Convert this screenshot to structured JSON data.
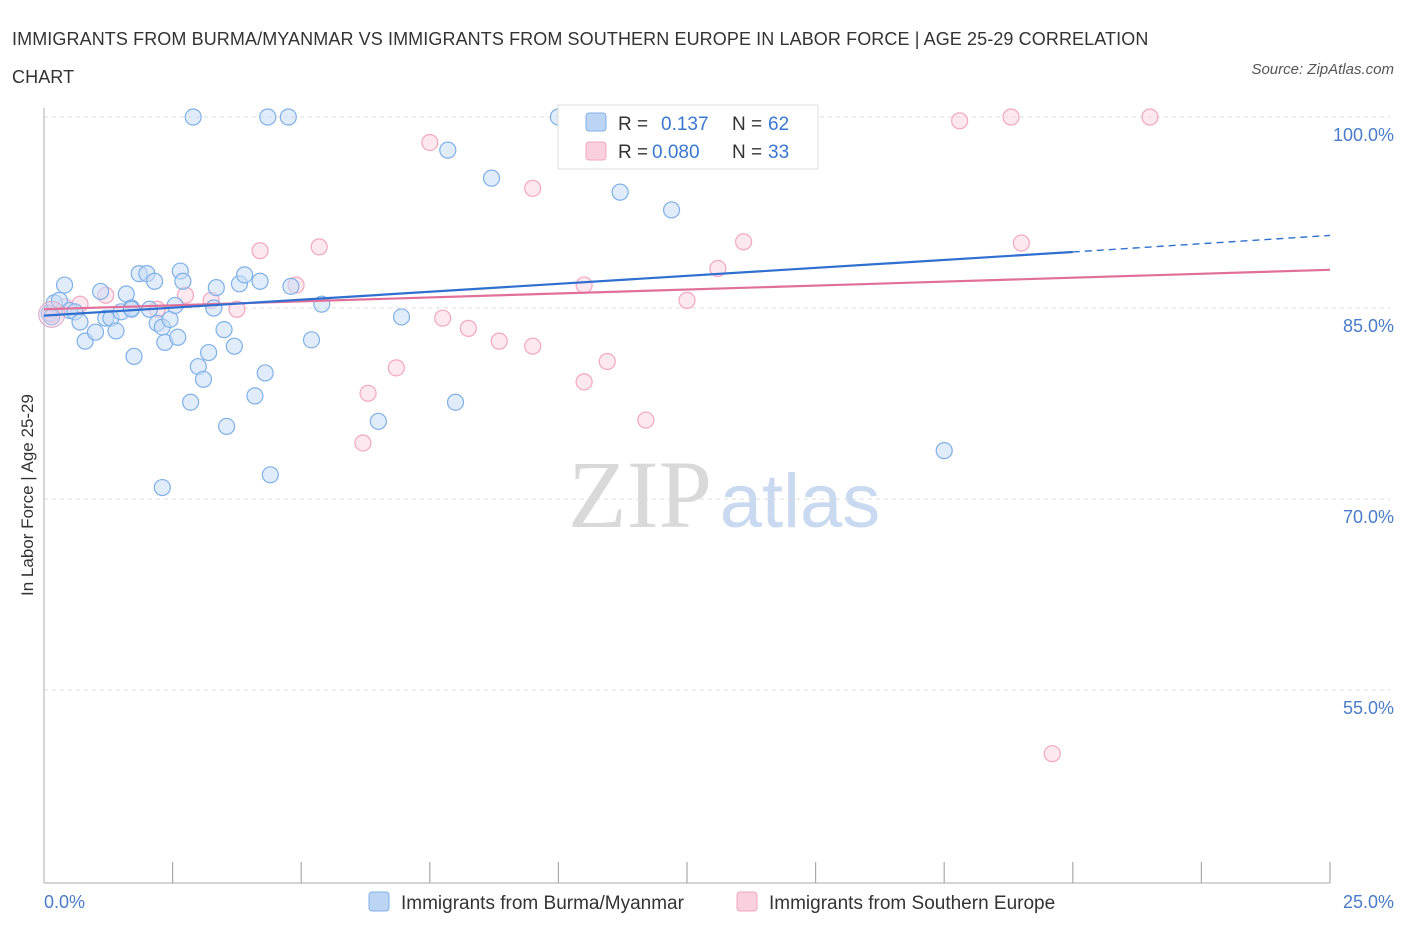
{
  "title": "IMMIGRANTS FROM BURMA/MYANMAR VS IMMIGRANTS FROM SOUTHERN EUROPE IN LABOR FORCE | AGE 25-29 CORRELATION CHART",
  "source": "Source: ZipAtlas.com",
  "watermark": {
    "zip": "ZIP",
    "atlas": "atlas"
  },
  "chart_data": {
    "type": "scatter",
    "title": "IMMIGRANTS FROM BURMA/MYANMAR VS IMMIGRANTS FROM SOUTHERN EUROPE IN LABOR FORCE | AGE 25-29 CORRELATION CHART",
    "xlabel": "",
    "ylabel": "In Labor Force | Age 25-29",
    "xlim": [
      0,
      25
    ],
    "ylim": [
      40,
      101
    ],
    "x_tick_labels": {
      "left": "0.0%",
      "right": "25.0%"
    },
    "y_ticks": [
      {
        "value": 100,
        "label": "100.0%"
      },
      {
        "value": 85,
        "label": "85.0%"
      },
      {
        "value": 70,
        "label": "70.0%"
      },
      {
        "value": 55,
        "label": "55.0%"
      }
    ],
    "legend": {
      "placement": "top-center",
      "rows": [
        {
          "r_label": "R =",
          "r_value": "0.137",
          "n_label": "N =",
          "n_value": "62"
        },
        {
          "r_label": "R =",
          "r_value": "0.080",
          "n_label": "N =",
          "n_value": "33"
        }
      ]
    },
    "series": [
      {
        "name": "Immigrants from Burma/Myanmar",
        "color": "#7fb0e8",
        "line_color": "#2f6fcf",
        "trend": {
          "x0": 0,
          "y0": 84.4,
          "x1": 20,
          "y1": 89.4,
          "dashed_to_x": 25,
          "dashed_y": 90.7
        },
        "points": [
          [
            0.1,
            84.6
          ],
          [
            0.2,
            85.4
          ],
          [
            0.3,
            85.6
          ],
          [
            0.4,
            86.8
          ],
          [
            0.5,
            84.8
          ],
          [
            0.6,
            84.7
          ],
          [
            0.7,
            83.9
          ],
          [
            0.8,
            82.4
          ],
          [
            1.0,
            83.1
          ],
          [
            1.1,
            86.3
          ],
          [
            1.2,
            84.2
          ],
          [
            1.3,
            84.2
          ],
          [
            1.4,
            83.2
          ],
          [
            1.5,
            84.7
          ],
          [
            1.6,
            86.1
          ],
          [
            1.7,
            85.0
          ],
          [
            1.75,
            81.2
          ],
          [
            1.85,
            87.7
          ],
          [
            2.0,
            87.7
          ],
          [
            2.05,
            84.9
          ],
          [
            2.15,
            87.1
          ],
          [
            2.2,
            83.8
          ],
          [
            2.3,
            83.5
          ],
          [
            2.35,
            82.3
          ],
          [
            2.45,
            84.1
          ],
          [
            2.55,
            85.2
          ],
          [
            2.6,
            82.7
          ],
          [
            2.65,
            87.9
          ],
          [
            2.7,
            87.1
          ],
          [
            2.85,
            77.6
          ],
          [
            2.9,
            100.0
          ],
          [
            3.0,
            80.4
          ],
          [
            3.1,
            79.4
          ],
          [
            3.2,
            81.5
          ],
          [
            3.3,
            85.0
          ],
          [
            3.35,
            86.6
          ],
          [
            3.5,
            83.3
          ],
          [
            3.55,
            75.7
          ],
          [
            3.7,
            82.0
          ],
          [
            3.8,
            86.9
          ],
          [
            3.9,
            87.6
          ],
          [
            4.1,
            78.1
          ],
          [
            4.2,
            87.1
          ],
          [
            4.3,
            79.9
          ],
          [
            4.4,
            71.9
          ],
          [
            4.35,
            100.0
          ],
          [
            4.75,
            100.0
          ],
          [
            4.8,
            86.7
          ],
          [
            5.2,
            82.5
          ],
          [
            5.4,
            85.3
          ],
          [
            6.5,
            76.1
          ],
          [
            6.95,
            84.3
          ],
          [
            7.85,
            97.4
          ],
          [
            8.0,
            77.6
          ],
          [
            8.7,
            95.2
          ],
          [
            10.0,
            100.0
          ],
          [
            11.2,
            94.1
          ],
          [
            12.2,
            92.7
          ],
          [
            17.5,
            73.8
          ],
          [
            2.3,
            70.9
          ],
          [
            1.7,
            84.9
          ],
          [
            0.15,
            84.3
          ]
        ]
      },
      {
        "name": "Immigrants from Southern Europe",
        "color": "#f3a6c0",
        "line_color": "#e0709a",
        "trend": {
          "x0": 0,
          "y0": 84.9,
          "x1": 25,
          "y1": 88.0
        },
        "points": [
          [
            0.15,
            84.5
          ],
          [
            0.7,
            85.3
          ],
          [
            1.2,
            86.0
          ],
          [
            2.2,
            84.9
          ],
          [
            2.75,
            86.0
          ],
          [
            3.25,
            85.6
          ],
          [
            3.75,
            84.9
          ],
          [
            4.2,
            89.5
          ],
          [
            4.9,
            86.8
          ],
          [
            5.35,
            89.8
          ],
          [
            6.2,
            74.4
          ],
          [
            6.3,
            78.3
          ],
          [
            6.85,
            80.3
          ],
          [
            7.5,
            98.0
          ],
          [
            7.75,
            84.2
          ],
          [
            8.25,
            83.4
          ],
          [
            8.85,
            82.4
          ],
          [
            9.5,
            94.4
          ],
          [
            9.5,
            82.0
          ],
          [
            10.5,
            79.2
          ],
          [
            10.5,
            86.8
          ],
          [
            10.95,
            80.8
          ],
          [
            11.7,
            76.2
          ],
          [
            12.1,
            100.0
          ],
          [
            12.5,
            85.6
          ],
          [
            13.1,
            88.1
          ],
          [
            13.6,
            90.2
          ],
          [
            17.8,
            99.7
          ],
          [
            18.8,
            100.0
          ],
          [
            19.0,
            90.1
          ],
          [
            19.6,
            50.0
          ],
          [
            21.5,
            100.0
          ],
          [
            0.4,
            85.1
          ]
        ]
      }
    ]
  }
}
